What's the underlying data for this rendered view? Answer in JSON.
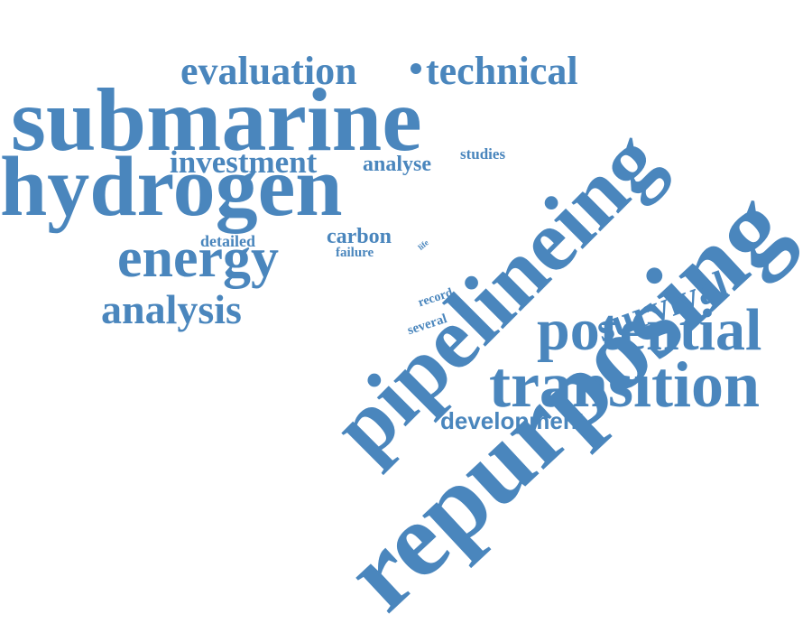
{
  "cloud": {
    "color": "#4a86bd",
    "words": {
      "repurposing": "repurposing",
      "submarine": "submarine",
      "hydrogen": "hydrogen",
      "pipelineing": "pipelineing",
      "potential": "potential",
      "transition": "transition",
      "energy": "energy",
      "evaluation": "evaluation",
      "technical": "technical",
      "investment": "investment",
      "analysis": "analysis",
      "survival": "survival",
      "development": "development",
      "analyse": "analyse",
      "studies": "studies",
      "carbon": "carbon",
      "detailed": "detailed",
      "failure": "failure",
      "record": "record",
      "several": "several",
      "life": "life"
    }
  }
}
